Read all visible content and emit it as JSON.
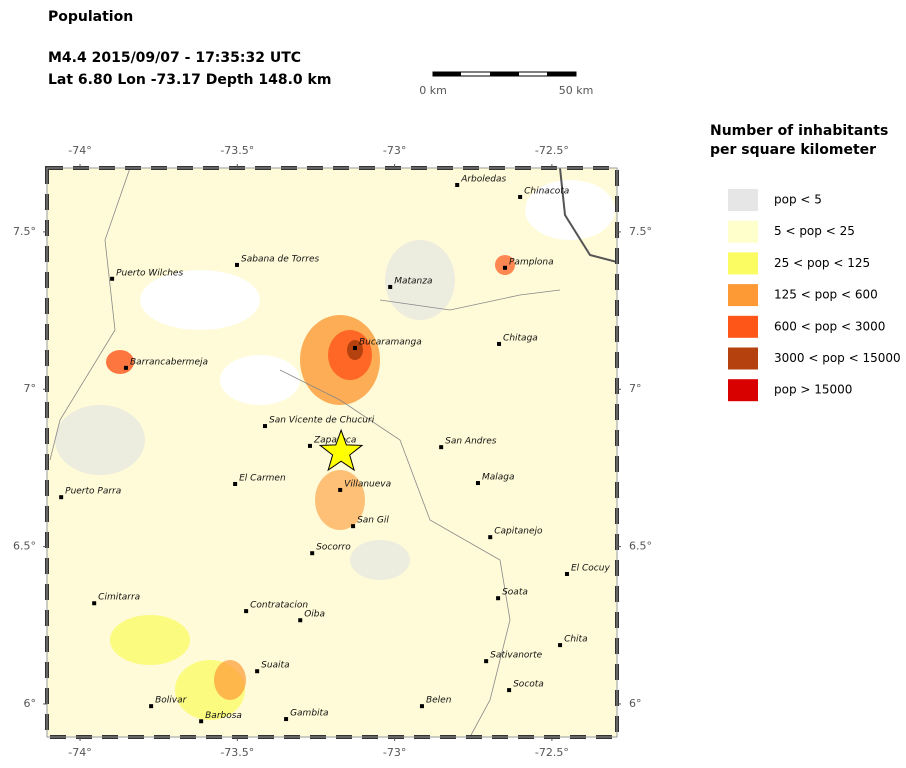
{
  "header": {
    "title": "Population",
    "event": "M4.4  2015/09/07 - 17:35:32 UTC",
    "location": "Lat  6.80    Lon -73.17     Depth 148.0 km"
  },
  "scale_bar": {
    "start": "0 km",
    "end": "50 km"
  },
  "map": {
    "xlim": [
      -74.105,
      -72.293
    ],
    "ylim": [
      5.895,
      7.703
    ],
    "xticks": [
      {
        "value": -74,
        "label": "-74°"
      },
      {
        "value": -73.5,
        "label": "-73.5°"
      },
      {
        "value": -73,
        "label": "-73°"
      },
      {
        "value": -72.5,
        "label": "-72.5°"
      }
    ],
    "yticks": [
      {
        "value": 6,
        "label": "6°"
      },
      {
        "value": 6.5,
        "label": "6.5°"
      },
      {
        "value": 7,
        "label": "7°"
      },
      {
        "value": 7.5,
        "label": "7.5°"
      }
    ],
    "epicenter": {
      "lon": -73.17,
      "lat": 6.8
    }
  },
  "cities": [
    {
      "name": "Arboledas",
      "lon": -72.801,
      "lat": 7.649
    },
    {
      "name": "Chinacota",
      "lon": -72.601,
      "lat": 7.611
    },
    {
      "name": "Pamplona",
      "lon": -72.649,
      "lat": 7.386
    },
    {
      "name": "Puerto Wilches",
      "lon": -73.898,
      "lat": 7.351
    },
    {
      "name": "Sabana de Torres",
      "lon": -73.501,
      "lat": 7.395
    },
    {
      "name": "Matanza",
      "lon": -73.014,
      "lat": 7.325
    },
    {
      "name": "Bucaramanga",
      "lon": -73.126,
      "lat": 7.131
    },
    {
      "name": "Chitaga",
      "lon": -72.668,
      "lat": 7.144
    },
    {
      "name": "Barrancabermeja",
      "lon": -73.854,
      "lat": 7.068
    },
    {
      "name": "San Vicente de Chucuri",
      "lon": -73.412,
      "lat": 6.883
    },
    {
      "name": "Zapatoca",
      "lon": -73.269,
      "lat": 6.82
    },
    {
      "name": "San Andres",
      "lon": -72.852,
      "lat": 6.816
    },
    {
      "name": "El Carmen",
      "lon": -73.507,
      "lat": 6.699
    },
    {
      "name": "Villanueva",
      "lon": -73.173,
      "lat": 6.68
    },
    {
      "name": "Malaga",
      "lon": -72.735,
      "lat": 6.702
    },
    {
      "name": "Puerto Parra",
      "lon": -74.06,
      "lat": 6.657
    },
    {
      "name": "San Gil",
      "lon": -73.132,
      "lat": 6.565
    },
    {
      "name": "Capitanejo",
      "lon": -72.696,
      "lat": 6.53
    },
    {
      "name": "Socorro",
      "lon": -73.262,
      "lat": 6.479
    },
    {
      "name": "El Cocuy",
      "lon": -72.452,
      "lat": 6.413
    },
    {
      "name": "Cimitarra",
      "lon": -73.955,
      "lat": 6.32
    },
    {
      "name": "Soata",
      "lon": -72.671,
      "lat": 6.336
    },
    {
      "name": "Contratacion",
      "lon": -73.472,
      "lat": 6.295
    },
    {
      "name": "Oiba",
      "lon": -73.3,
      "lat": 6.266
    },
    {
      "name": "Chita",
      "lon": -72.474,
      "lat": 6.187
    },
    {
      "name": "Sativanorte",
      "lon": -72.709,
      "lat": 6.136
    },
    {
      "name": "Suaita",
      "lon": -73.437,
      "lat": 6.104
    },
    {
      "name": "Socota",
      "lon": -72.636,
      "lat": 6.044
    },
    {
      "name": "Bolivar",
      "lon": -73.774,
      "lat": 5.993
    },
    {
      "name": "Belen",
      "lon": -72.913,
      "lat": 5.993
    },
    {
      "name": "Barbosa",
      "lon": -73.615,
      "lat": 5.945
    },
    {
      "name": "Gambita",
      "lon": -73.345,
      "lat": 5.952
    }
  ],
  "legend": {
    "title_lines": [
      "Number of inhabitants",
      "per square kilometer"
    ],
    "items": [
      {
        "label": "pop < 5",
        "color": "#e6e6e6"
      },
      {
        "label": "5 < pop < 25",
        "color": "#ffffcc"
      },
      {
        "label": "25 < pop < 125",
        "color": "#fbfb62"
      },
      {
        "label": "125 < pop < 600",
        "color": "#fd9a35"
      },
      {
        "label": "600 < pop < 3000",
        "color": "#fe5519"
      },
      {
        "label": "3000 < pop < 15000",
        "color": "#b5420e"
      },
      {
        "label": "pop > 15000",
        "color": "#d90000"
      }
    ]
  }
}
